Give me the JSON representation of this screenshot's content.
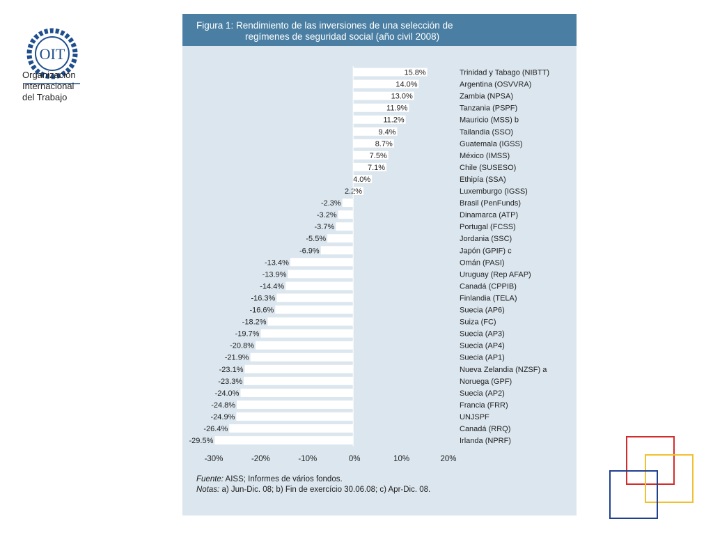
{
  "org": {
    "name_lines": [
      "Organización",
      "Internacional",
      "del Trabajo"
    ],
    "logo_text": "OIT"
  },
  "figure": {
    "title_line1": "Figura 1: Rendimiento de las inversiones de una selección de",
    "title_line2": "regímenes de seguridad social (año civil 2008)",
    "source_label": "Fuente:",
    "source_text": " AISS; Informes de vários fondos.",
    "notes_label": "Notas:",
    "notes_text": " a) Jun-Dic. 08; b) Fin de exercício 30.06.08; c) Apr-Dic. 08."
  },
  "chart_data": {
    "type": "bar",
    "orientation": "horizontal",
    "categories": [
      "Trinidad y Tabago (NIBTT)",
      "Argentina (OSVVRA)",
      "Zambia (NPSA)",
      "Tanzania (PSPF)",
      "Mauricio (MSS) b",
      "Tailandia (SSO)",
      "Guatemala (IGSS)",
      "México (IMSS)",
      "Chile (SUSESO)",
      "Ethipía (SSA)",
      "Luxemburgo (IGSS)",
      "Brasil (PenFunds)",
      "Dinamarca (ATP)",
      "Portugal (FCSS)",
      "Jordania (SSC)",
      "Japón (GPIF) c",
      "Omán (PASI)",
      "Uruguay (Rep AFAP)",
      "Canadá (CPPIB)",
      "Finlandia (TELA)",
      "Suecia (AP6)",
      "Suiza (FC)",
      "Suecia (AP3)",
      "Suecia (AP4)",
      "Suecia (AP1)",
      "Nueva Zelandia (NZSF) a",
      "Noruega (GPF)",
      "Suecia (AP2)",
      "Francia (FRR)",
      "UNJSPF",
      "Canadá (RRQ)",
      "Irlanda (NPRF)"
    ],
    "values": [
      15.8,
      14.0,
      13.0,
      11.9,
      11.2,
      9.4,
      8.7,
      7.5,
      7.1,
      4.0,
      2.2,
      -2.3,
      -3.2,
      -3.7,
      -5.5,
      -6.9,
      -13.4,
      -13.9,
      -14.4,
      -16.3,
      -16.6,
      -18.2,
      -19.7,
      -20.8,
      -21.9,
      -23.1,
      -23.3,
      -24.0,
      -24.8,
      -24.9,
      -26.4,
      -29.5
    ],
    "value_labels": [
      "15.8%",
      "14.0%",
      "13.0%",
      "11.9%",
      "11.2%",
      "9.4%",
      "8.7%",
      "7.5%",
      "7.1%",
      "4.0%",
      "2.2%",
      "-2.3%",
      "-3.2%",
      "-3.7%",
      "-5.5%",
      "-6.9%",
      "-13.4%",
      "-13.9%",
      "-14.4%",
      "-16.3%",
      "-16.6%",
      "-18.2%",
      "-19.7%",
      "-20.8%",
      "-21.9%",
      "-23.1%",
      "-23.3%",
      "-24.0%",
      "-24.8%",
      "-24.9%",
      "-26.4%",
      "-29.5%"
    ],
    "xlim": [
      -30,
      20
    ],
    "xticks": [
      -30,
      -20,
      -10,
      0,
      10,
      20
    ],
    "xtick_labels": [
      "-30%",
      "-20%",
      "-10%",
      "0%",
      "10%",
      "20%"
    ],
    "grid": false,
    "legend": false
  },
  "colors": {
    "panel_bg": "#dbe6ee",
    "header_bg": "#4a7fa3",
    "bar": "#ffffff",
    "logo_blue": "#1f4e8c"
  }
}
